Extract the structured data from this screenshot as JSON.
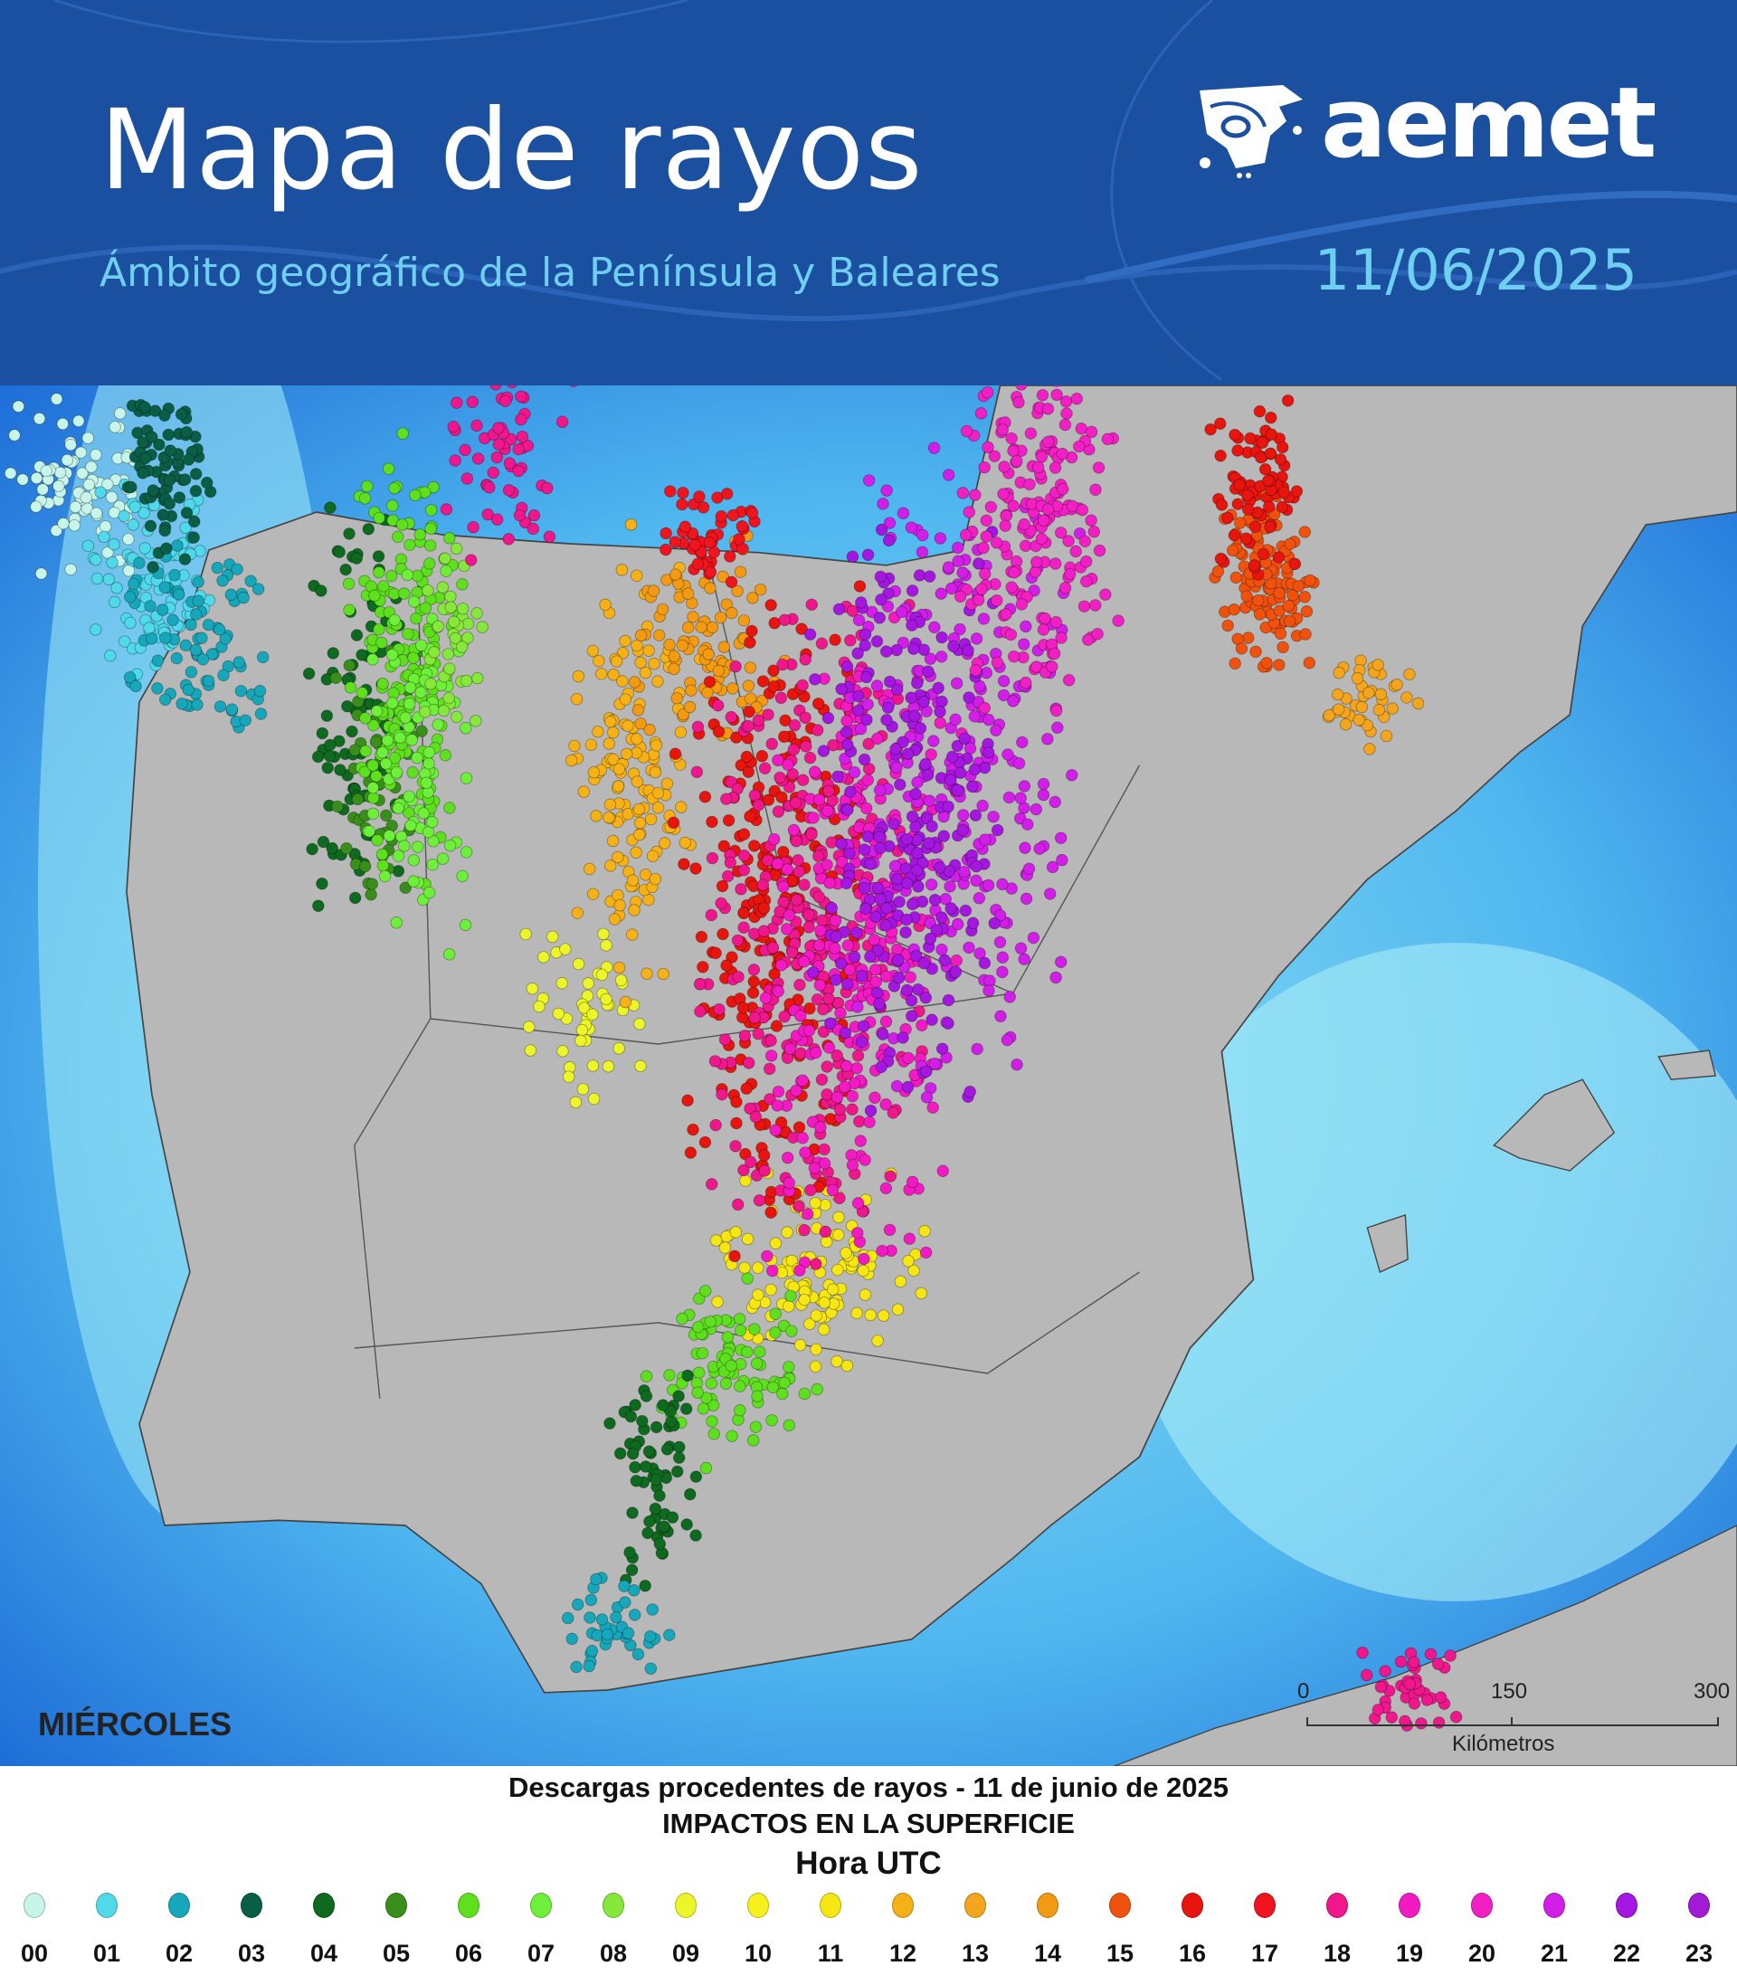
{
  "header": {
    "title": "Mapa de rayos",
    "subtitle": "Ámbito geográfico de la Península y Baleares",
    "logo_text": "aemet",
    "date": "11/06/2025",
    "background_color": "#1b4fa0",
    "accent_color": "#6fcff2"
  },
  "map": {
    "weekday": "MIÉRCOLES",
    "scale": {
      "ticks": [
        "0",
        "150",
        "300"
      ],
      "unit": "Kilómetros"
    }
  },
  "legend": {
    "title": "Descargas procedentes de rayos - 11 de junio de 2025",
    "subtitle": "IMPACTOS EN LA SUPERFICIE",
    "hour_label": "Hora UTC",
    "hours": [
      {
        "label": "00",
        "color": "#c8f5ea"
      },
      {
        "label": "01",
        "color": "#4fd9ea"
      },
      {
        "label": "02",
        "color": "#17a7bb"
      },
      {
        "label": "03",
        "color": "#0b5e46"
      },
      {
        "label": "04",
        "color": "#0d6a1f"
      },
      {
        "label": "05",
        "color": "#3a8f1c"
      },
      {
        "label": "06",
        "color": "#5fe01e"
      },
      {
        "label": "07",
        "color": "#6ef03a"
      },
      {
        "label": "08",
        "color": "#86e83a"
      },
      {
        "label": "09",
        "color": "#ecf52a"
      },
      {
        "label": "10",
        "color": "#f7ef1e"
      },
      {
        "label": "11",
        "color": "#f5e614"
      },
      {
        "label": "12",
        "color": "#f6b117"
      },
      {
        "label": "13",
        "color": "#f3a51e"
      },
      {
        "label": "14",
        "color": "#f29a12"
      },
      {
        "label": "15",
        "color": "#f0520e"
      },
      {
        "label": "16",
        "color": "#e8140e"
      },
      {
        "label": "17",
        "color": "#f0141e"
      },
      {
        "label": "18",
        "color": "#f0168c"
      },
      {
        "label": "19",
        "color": "#f31ac4"
      },
      {
        "label": "20",
        "color": "#f21fc4"
      },
      {
        "label": "21",
        "color": "#d21ee8"
      },
      {
        "label": "22",
        "color": "#a516e0"
      },
      {
        "label": "23",
        "color": "#a21ad6"
      }
    ]
  }
}
